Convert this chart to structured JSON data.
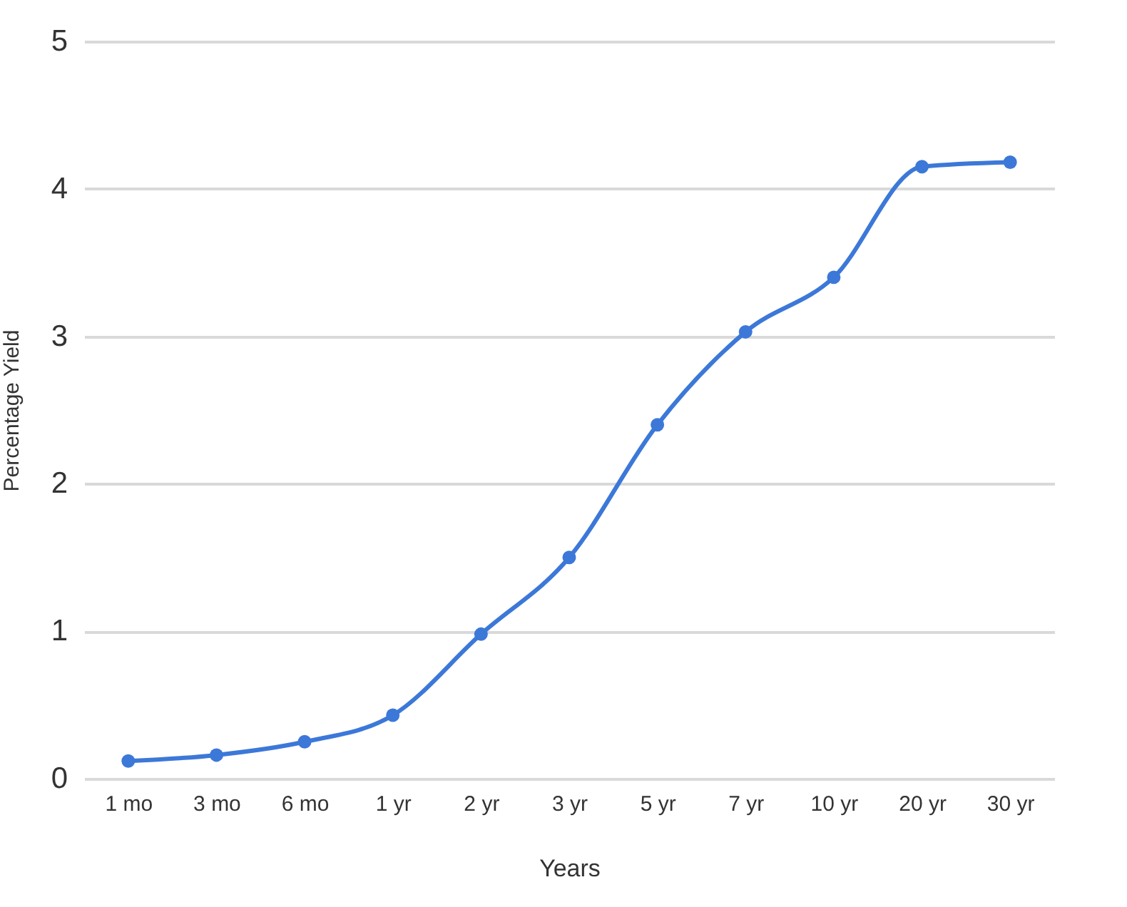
{
  "chart_data": {
    "type": "line",
    "xlabel": "Years",
    "ylabel": "Percentage Yield",
    "categories": [
      "1 mo",
      "3 mo",
      "6 mo",
      "1 yr",
      "2 yr",
      "3 yr",
      "5 yr",
      "7 yr",
      "10 yr",
      "20 yr",
      "30 yr"
    ],
    "series": [
      {
        "color": "#3c78d8",
        "values": [
          0.12,
          0.16,
          0.25,
          0.43,
          0.98,
          1.5,
          2.4,
          3.03,
          3.4,
          4.15,
          4.18
        ]
      }
    ],
    "ylim": [
      0,
      5
    ],
    "yticks": [
      0,
      1,
      2,
      3,
      4,
      5
    ],
    "grid": "y",
    "marker": "circle",
    "line_style": "solid",
    "legend": false
  }
}
